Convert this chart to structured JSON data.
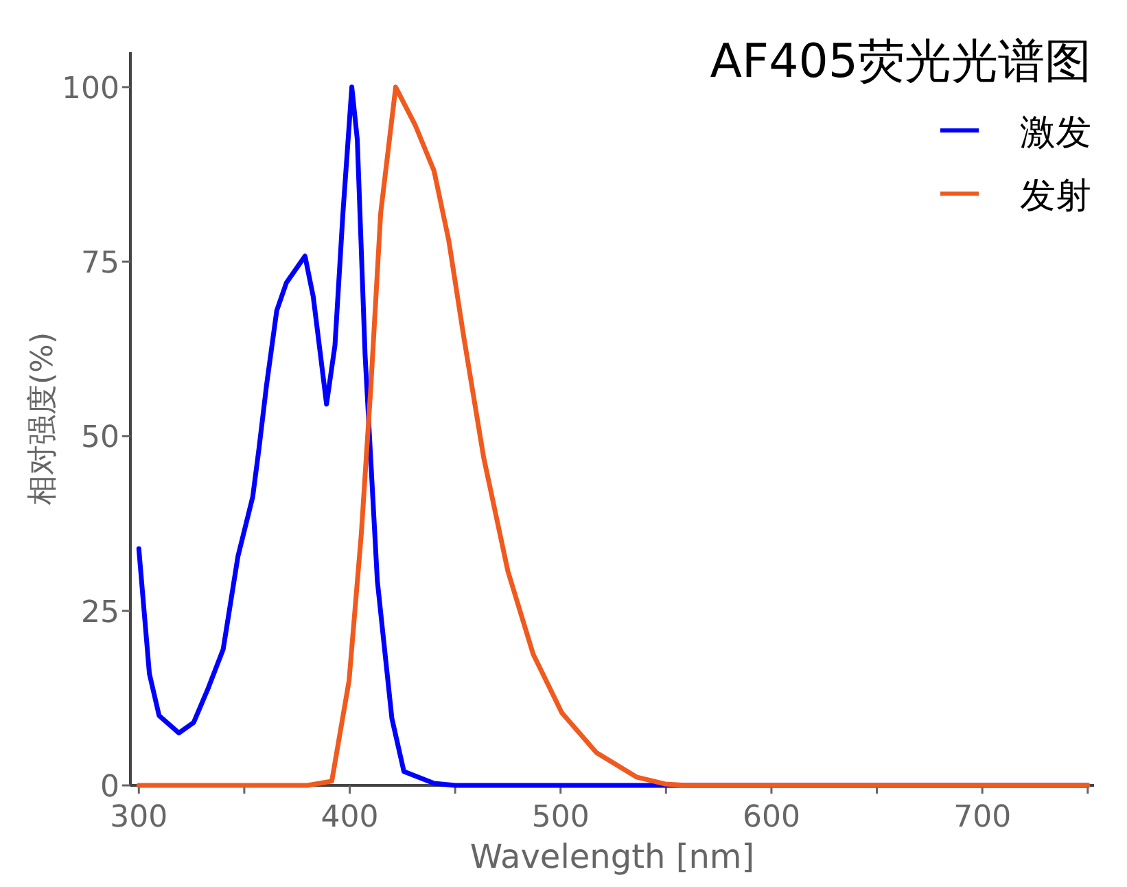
{
  "chart_data": {
    "type": "line",
    "title": "AF405荧光光谱图",
    "xlabel": "Wavelength [nm]",
    "ylabel": "相对强度(%)",
    "xlim": [
      296,
      753
    ],
    "ylim": [
      0,
      105
    ],
    "xticks": [
      300,
      {
        "value": 350,
        "label": null
      },
      400,
      {
        "value": 450,
        "label": null
      },
      500,
      {
        "value": 550,
        "label": null
      },
      600,
      {
        "value": 650,
        "label": null
      },
      700,
      {
        "value": 750,
        "label": null
      }
    ],
    "yticks": [
      0,
      25,
      50,
      75,
      100
    ],
    "grid": false,
    "legend": "top right",
    "marker": "none",
    "line_style": "solid",
    "series": [
      {
        "name": "激发",
        "color": "#0000ff",
        "x": [
          300,
          305,
          309.6,
          319,
          326,
          333,
          340,
          347,
          354,
          357,
          360.6,
          365.4,
          370,
          378.8,
          382.7,
          386.4,
          389,
          393,
          396.8,
          401,
          403.6,
          407.3,
          413.1,
          420,
          425.7,
          440,
          450,
          600,
          750
        ],
        "values": [
          33.9,
          16,
          10,
          7.5,
          9,
          14,
          19.5,
          32.8,
          41.3,
          48.3,
          57.4,
          68,
          72,
          75.8,
          70,
          61,
          54.6,
          63,
          82,
          100,
          92.5,
          61.6,
          29.3,
          9.6,
          2,
          0.3,
          0,
          0,
          0
        ]
      },
      {
        "name": "发射",
        "color": "#f05a1e",
        "x": [
          300,
          380,
          391.5,
          399.7,
          405.5,
          410,
          414.7,
          421.8,
          431,
          440,
          447,
          454,
          463.5,
          475,
          487,
          500.6,
          517,
          536,
          549.5,
          560,
          750
        ],
        "values": [
          0,
          0,
          0.6,
          15,
          36,
          57,
          82,
          100,
          94.6,
          88,
          78,
          64.4,
          47,
          30.7,
          18.8,
          10.4,
          4.7,
          1.2,
          0.2,
          0,
          0
        ]
      }
    ]
  }
}
